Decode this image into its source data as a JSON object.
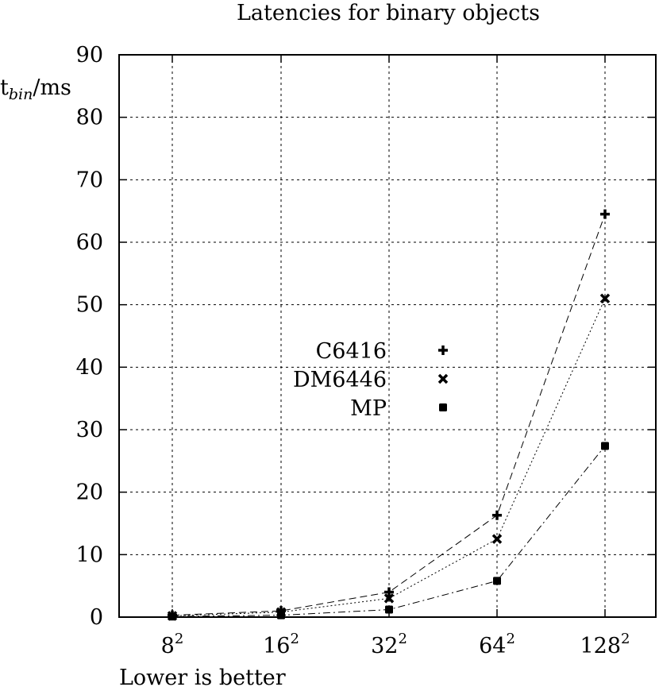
{
  "chart_data": {
    "type": "line",
    "title": "Latencies for binary objects",
    "ylabel": {
      "base": "t",
      "sub": "bin",
      "suffix": "/ms"
    },
    "xlabel": "Lower is better",
    "ylim": [
      0,
      90
    ],
    "yticks": [
      0,
      10,
      20,
      30,
      40,
      50,
      60,
      70,
      80,
      90
    ],
    "grid": true,
    "legend_position": "center-left",
    "categories": [
      {
        "base": "8",
        "exp": "2"
      },
      {
        "base": "16",
        "exp": "2"
      },
      {
        "base": "32",
        "exp": "2"
      },
      {
        "base": "64",
        "exp": "2"
      },
      {
        "base": "128",
        "exp": "2"
      }
    ],
    "series": [
      {
        "name": "C6416",
        "marker": "plus",
        "dash": "dashed",
        "values": [
          0.3,
          1.0,
          4.0,
          16.3,
          64.5
        ]
      },
      {
        "name": "DM6446",
        "marker": "cross",
        "dash": "dotted",
        "values": [
          0.2,
          0.8,
          3.0,
          12.5,
          51.0
        ]
      },
      {
        "name": "MP",
        "marker": "square",
        "dash": "dashdot",
        "values": [
          0.1,
          0.3,
          1.2,
          5.8,
          27.4
        ]
      }
    ]
  }
}
